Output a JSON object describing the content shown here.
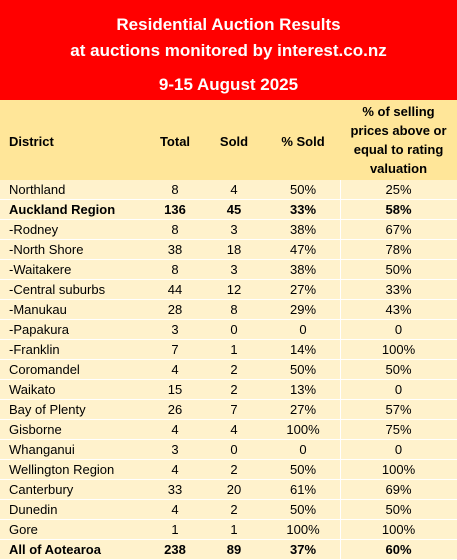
{
  "banner": {
    "line1": "Residential Auction Results",
    "line2": "at auctions monitored by interest.co.nz",
    "line3": "9-15 August 2025"
  },
  "colors": {
    "banner_bg": "#ff0000",
    "header_bg": "#ffe699",
    "body_bg": "#fff2cc"
  },
  "table": {
    "headers": {
      "district": "District",
      "total": "Total",
      "sold": "Sold",
      "pct_sold": "% Sold",
      "above_valuation": "% of selling\nprices above or\nequal to rating\nvaluation"
    },
    "rows": [
      {
        "district": "Northland",
        "total": "8",
        "sold": "4",
        "pct_sold": "50%",
        "above": "25%",
        "bold": false
      },
      {
        "district": "Auckland Region",
        "total": "136",
        "sold": "45",
        "pct_sold": "33%",
        "above": "58%",
        "bold": true
      },
      {
        "district": "-Rodney",
        "total": "8",
        "sold": "3",
        "pct_sold": "38%",
        "above": "67%",
        "bold": false
      },
      {
        "district": "-North Shore",
        "total": "38",
        "sold": "18",
        "pct_sold": "47%",
        "above": "78%",
        "bold": false
      },
      {
        "district": "-Waitakere",
        "total": "8",
        "sold": "3",
        "pct_sold": "38%",
        "above": "50%",
        "bold": false
      },
      {
        "district": "-Central suburbs",
        "total": "44",
        "sold": "12",
        "pct_sold": "27%",
        "above": "33%",
        "bold": false
      },
      {
        "district": "-Manukau",
        "total": "28",
        "sold": "8",
        "pct_sold": "29%",
        "above": "43%",
        "bold": false
      },
      {
        "district": "-Papakura",
        "total": "3",
        "sold": "0",
        "pct_sold": "0",
        "above": "0",
        "bold": false
      },
      {
        "district": "-Franklin",
        "total": "7",
        "sold": "1",
        "pct_sold": "14%",
        "above": "100%",
        "bold": false
      },
      {
        "district": "Coromandel",
        "total": "4",
        "sold": "2",
        "pct_sold": "50%",
        "above": "50%",
        "bold": false
      },
      {
        "district": "Waikato",
        "total": "15",
        "sold": "2",
        "pct_sold": "13%",
        "above": "0",
        "bold": false
      },
      {
        "district": "Bay of Plenty",
        "total": "26",
        "sold": "7",
        "pct_sold": "27%",
        "above": "57%",
        "bold": false
      },
      {
        "district": "Gisborne",
        "total": "4",
        "sold": "4",
        "pct_sold": "100%",
        "above": "75%",
        "bold": false
      },
      {
        "district": "Whanganui",
        "total": "3",
        "sold": "0",
        "pct_sold": "0",
        "above": "0",
        "bold": false
      },
      {
        "district": "Wellington Region",
        "total": "4",
        "sold": "2",
        "pct_sold": "50%",
        "above": "100%",
        "bold": false
      },
      {
        "district": "Canterbury",
        "total": "33",
        "sold": "20",
        "pct_sold": "61%",
        "above": "69%",
        "bold": false
      },
      {
        "district": "Dunedin",
        "total": "4",
        "sold": "2",
        "pct_sold": "50%",
        "above": "50%",
        "bold": false
      },
      {
        "district": "Gore",
        "total": "1",
        "sold": "1",
        "pct_sold": "100%",
        "above": "100%",
        "bold": false
      },
      {
        "district": "All of Aotearoa",
        "total": "238",
        "sold": "89",
        "pct_sold": "37%",
        "above": "60%",
        "bold": true
      }
    ]
  }
}
